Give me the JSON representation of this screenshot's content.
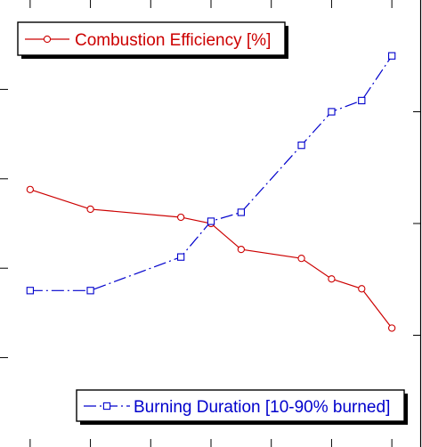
{
  "chart_data": {
    "type": "line",
    "x": [
      1,
      3,
      6,
      7,
      8,
      10,
      11,
      12,
      13
    ],
    "series": [
      {
        "name": "Combustion Efficiency [%]",
        "axis": "left",
        "color": "#cc0000",
        "marker": "circle",
        "line_style": "solid",
        "values": [
          2.88,
          2.66,
          2.57,
          2.5,
          2.21,
          2.11,
          1.88,
          1.77,
          1.33
        ]
      },
      {
        "name": "Burning Duration [10-90% burned]",
        "axis": "right",
        "color": "#0000cc",
        "marker": "square",
        "line_style": "dash-dot",
        "values": [
          1.4,
          1.4,
          1.7,
          2.02,
          2.1,
          2.7,
          3.0,
          3.1,
          3.5
        ]
      }
    ],
    "xlim": [
      0,
      14
    ],
    "ylim_left": [
      0,
      5
    ],
    "ylim_right": [
      0,
      4
    ],
    "grid": false,
    "legend": [
      {
        "series": 0,
        "placement": "top-left"
      },
      {
        "series": 1,
        "placement": "bottom-right"
      }
    ]
  }
}
